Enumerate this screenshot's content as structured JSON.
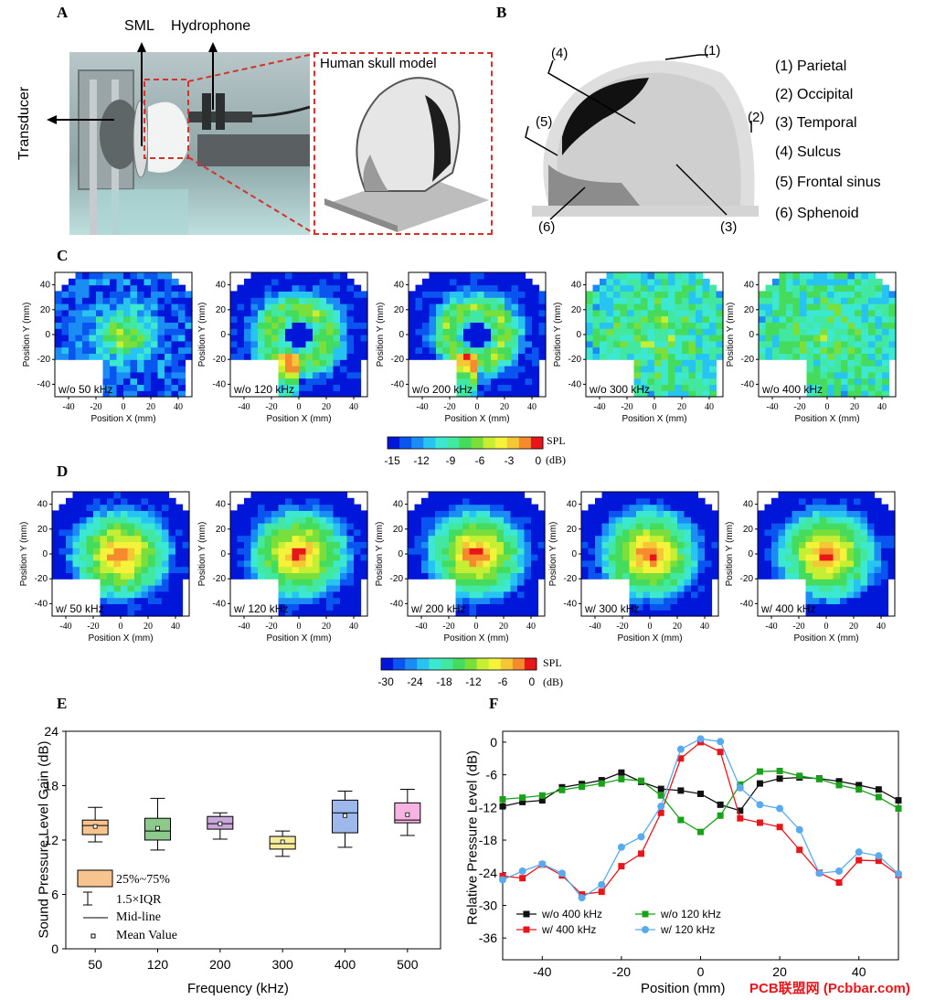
{
  "panels": {
    "A": "A",
    "B": "B",
    "C": "C",
    "D": "D",
    "E": "E",
    "F": "F"
  },
  "panelA": {
    "labels": {
      "transducer": "Transducer",
      "sml": "SML",
      "hydrophone": "Hydrophone",
      "skull_model": "Human skull model"
    }
  },
  "panelB": {
    "callouts": [
      "(1)",
      "(2)",
      "(3)",
      "(4)",
      "(5)",
      "(6)"
    ],
    "legend": [
      "(1) Parietal",
      "(2) Occipital",
      "(3) Temporal",
      "(4) Sulcus",
      "(5) Frontal sinus",
      "(6) Sphenoid"
    ]
  },
  "panelC": {
    "maps": [
      {
        "label": "w/o 50 kHz",
        "peak": "center-left"
      },
      {
        "label": "w/o 120 kHz",
        "peak": "ring"
      },
      {
        "label": "w/o 200 kHz",
        "peak": "ring"
      },
      {
        "label": "w/o 300 kHz",
        "peak": "scattered"
      },
      {
        "label": "w/o 400 kHz",
        "peak": "scattered"
      }
    ],
    "colorbar": {
      "title": "SPL",
      "unit": "(dB)",
      "ticks": [
        "-15",
        "-12",
        "-9",
        "-6",
        "-3",
        "0"
      ]
    }
  },
  "panelD": {
    "maps": [
      {
        "label": "w/ 50 kHz"
      },
      {
        "label": "w/ 120 kHz"
      },
      {
        "label": "w/ 200 kHz"
      },
      {
        "label": "w/ 300 kHz"
      },
      {
        "label": "w/ 400 kHz"
      }
    ],
    "colorbar": {
      "title": "SPL",
      "unit": "(dB)",
      "ticks": [
        "-30",
        "-24",
        "-18",
        "-12",
        "-6",
        "0"
      ]
    }
  },
  "map_axes": {
    "xlabel": "Position X (mm)",
    "ylabel": "Position Y (mm)",
    "xticks": [
      "-40",
      "-20",
      "0",
      "20",
      "40"
    ],
    "yticks": [
      "40",
      "20",
      "0",
      "-20",
      "-40"
    ]
  },
  "colors": {
    "red": "#e8161b",
    "black": "#111111",
    "green": "#1aa11a",
    "blue": "#5aaaf0",
    "box": [
      "#f7c38f",
      "#8cc98a",
      "#c9a8d9",
      "#f6ec9c",
      "#9fb8ec",
      "#f7b3e2"
    ]
  },
  "chart_data": [
    {
      "type": "box",
      "title": "",
      "xlabel": "Frequency (kHz)",
      "ylabel": "Sound Pressure Level Gain (dB)",
      "ylim": [
        0,
        24
      ],
      "yticks": [
        "0",
        "6",
        "12",
        "18",
        "24"
      ],
      "categories": [
        "50",
        "120",
        "200",
        "300",
        "400",
        "500"
      ],
      "boxes": [
        {
          "q1": 12.6,
          "median": 13.6,
          "q3": 14.2,
          "wlo": 11.8,
          "whi": 15.6,
          "mean": 13.5
        },
        {
          "q1": 12.0,
          "median": 13.0,
          "q3": 14.4,
          "wlo": 10.9,
          "whi": 16.6,
          "mean": 13.3
        },
        {
          "q1": 13.2,
          "median": 13.8,
          "q3": 14.6,
          "wlo": 12.1,
          "whi": 15.0,
          "mean": 13.8
        },
        {
          "q1": 11.0,
          "median": 11.6,
          "q3": 12.4,
          "wlo": 10.2,
          "whi": 13.0,
          "mean": 11.8
        },
        {
          "q1": 12.8,
          "median": 15.0,
          "q3": 16.4,
          "wlo": 11.2,
          "whi": 17.4,
          "mean": 14.7
        },
        {
          "q1": 13.9,
          "median": 14.2,
          "q3": 16.1,
          "wlo": 12.5,
          "whi": 17.6,
          "mean": 14.8
        }
      ],
      "legend": {
        "box": "25%~75%",
        "whisker": "1.5×IQR",
        "midline": "Mid-line",
        "mean": "Mean Value"
      }
    },
    {
      "type": "line",
      "title": "",
      "xlabel": "Position (mm)",
      "ylabel": "Relative Pressure Level (dB)",
      "xlim": [
        -50,
        50
      ],
      "ylim": [
        -40,
        2
      ],
      "xticks": [
        "-40",
        "-20",
        "0",
        "20",
        "40"
      ],
      "yticks": [
        "0",
        "-6",
        "-12",
        "-18",
        "-24",
        "-30",
        "-36"
      ],
      "x": [
        -50,
        -45,
        -40,
        -35,
        -30,
        -25,
        -20,
        -15,
        -10,
        -5,
        0,
        5,
        10,
        15,
        20,
        25,
        30,
        35,
        40,
        45,
        50
      ],
      "series": [
        {
          "name": "w/o 400 kHz",
          "color": "#111111",
          "marker": "square",
          "values": [
            -11.8,
            -11,
            -10.7,
            -8.3,
            -7.7,
            -7,
            -5.6,
            -7.3,
            -8.6,
            -8.9,
            -9.5,
            -11.5,
            -12.6,
            -7.6,
            -6.7,
            -6.5,
            -6.7,
            -7.2,
            -7.9,
            -8.7,
            -10.7
          ]
        },
        {
          "name": "w/ 400 kHz",
          "color": "#e8161b",
          "marker": "square",
          "values": [
            -24.6,
            -25,
            -22.5,
            -24.5,
            -28,
            -27.5,
            -22.8,
            -20.5,
            -13,
            -3,
            0,
            -1.8,
            -14,
            -14.8,
            -15.6,
            -19.8,
            -24,
            -25.8,
            -21.7,
            -21.8,
            -24.4
          ]
        },
        {
          "name": "w/o 120 kHz",
          "color": "#1aa11a",
          "marker": "square",
          "values": [
            -10.5,
            -10.2,
            -9.8,
            -8.8,
            -8.2,
            -7.6,
            -6.8,
            -7.1,
            -9.8,
            -14.3,
            -16.5,
            -13.5,
            -7.8,
            -5.4,
            -5.3,
            -6.2,
            -6.8,
            -7.9,
            -8.7,
            -10.1,
            -12.2
          ]
        },
        {
          "name": "w/ 120 kHz",
          "color": "#5aaaf0",
          "marker": "circle",
          "values": [
            -25.3,
            -23.7,
            -22.4,
            -24.1,
            -28.6,
            -26.2,
            -19.3,
            -17.4,
            -11.8,
            -1.3,
            0.6,
            0.1,
            -8.4,
            -11.5,
            -12.2,
            -16.1,
            -24.1,
            -23.7,
            -20.2,
            -20.9,
            -24.2
          ]
        }
      ]
    }
  ],
  "watermark": "PCB联盟网 (Pcbbar.com)"
}
